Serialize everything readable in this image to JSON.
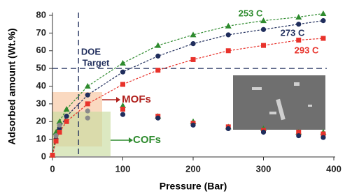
{
  "chart_data": {
    "type": "scatter",
    "x_label": "Pressure (Bar)",
    "y_label": "Adsorbed amount (Wt.%)",
    "xlim": [
      0,
      400
    ],
    "xticks": [
      0,
      100,
      200,
      300,
      400
    ],
    "ylim": [
      0,
      80
    ],
    "yticks": [
      0,
      10,
      20,
      30,
      40,
      50,
      60,
      70,
      80
    ],
    "reference_lines": {
      "x": 37,
      "y": 50
    },
    "series": [
      {
        "name": "253 C",
        "color": "#2e8b2e",
        "marker": "triangle",
        "line": true,
        "x": [
          0,
          5,
          10,
          20,
          50,
          100,
          150,
          200,
          250,
          300,
          350,
          385
        ],
        "values": [
          1,
          14,
          20,
          27,
          40,
          53,
          63,
          69,
          74,
          77,
          79,
          81
        ]
      },
      {
        "name": "273 C",
        "color": "#1f2d5c",
        "marker": "circle",
        "line": true,
        "x": [
          0,
          5,
          10,
          20,
          50,
          100,
          150,
          200,
          250,
          300,
          350,
          385
        ],
        "values": [
          1,
          10,
          16,
          23,
          35,
          48,
          57,
          64,
          69,
          72,
          75,
          77
        ]
      },
      {
        "name": "293 C",
        "color": "#e8322b",
        "marker": "square",
        "line": true,
        "x": [
          0,
          5,
          10,
          20,
          50,
          100,
          150,
          200,
          250,
          300,
          350,
          385
        ],
        "values": [
          1,
          9,
          14,
          20,
          30,
          41,
          49,
          55,
          60,
          63,
          66,
          67
        ]
      },
      {
        "color": "#2e8b2e",
        "marker": "triangle",
        "line": false,
        "x": [
          100,
          150,
          200,
          250,
          300,
          350,
          385
        ],
        "values": [
          29,
          23,
          20,
          17,
          16,
          14,
          14
        ]
      },
      {
        "color": "#e8322b",
        "marker": "square",
        "line": false,
        "x": [
          100,
          150,
          200,
          250,
          300,
          350,
          385
        ],
        "values": [
          27,
          23,
          19,
          17,
          15,
          14,
          13
        ]
      },
      {
        "color": "#1f2d5c",
        "marker": "circle",
        "line": false,
        "x": [
          100,
          150,
          200,
          250,
          300,
          350,
          385
        ],
        "values": [
          24,
          22,
          18,
          16,
          14,
          12,
          11
        ]
      },
      {
        "color": "#8a8a8a",
        "marker": "circle",
        "line": false,
        "x": [
          5,
          10,
          50,
          50
        ],
        "values": [
          12,
          18,
          22,
          26
        ]
      }
    ],
    "annotations": [
      {
        "text": "DOE",
        "color": "#1f2d5c"
      },
      {
        "text": "Target",
        "color": "#1f2d5c"
      },
      {
        "text": "MOFs",
        "color": "#b0201c"
      },
      {
        "text": "COFs",
        "color": "#2e8b2e"
      }
    ]
  }
}
